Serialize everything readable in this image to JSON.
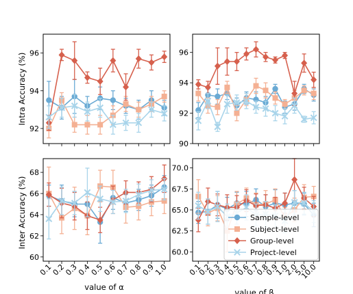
{
  "colors": {
    "sample": "#6aaad4",
    "subject": "#f4b093",
    "group": "#d6604d",
    "project": "#a8d4ea"
  },
  "labels": {
    "ylabel_top": "Intra Accuracy (%)",
    "ylabel_bottom": "Inter Accuracy (%)",
    "xlabel_left": "value of α",
    "xlabel_right": "value of β"
  },
  "chart_data": [
    {
      "type": "line",
      "panel": "intra-alpha",
      "x": [
        "0.1",
        "0.2",
        "0.3",
        "0.4",
        "0.5",
        "0.6",
        "0.7",
        "0.8",
        "0.9",
        "1.0"
      ],
      "ylim": [
        91.2,
        97.0
      ],
      "yticks": [
        92,
        94,
        96
      ],
      "ylabel": "Intra Accuracy (%)",
      "series": [
        {
          "name": "Sample-level",
          "marker": "circle",
          "values": [
            93.5,
            93.1,
            93.7,
            93.2,
            93.6,
            93.5,
            93.2,
            93.0,
            93.5,
            93.1
          ],
          "err": [
            1.0,
            0.6,
            0.9,
            0.5,
            0.6,
            0.5,
            0.4,
            0.5,
            0.5,
            0.4
          ]
        },
        {
          "name": "Subject-level",
          "marker": "square",
          "values": [
            92.0,
            93.5,
            92.2,
            92.2,
            92.2,
            92.7,
            93.3,
            93.0,
            93.3,
            93.7
          ],
          "err": [
            0.5,
            0.4,
            0.4,
            0.5,
            0.5,
            0.5,
            0.4,
            0.4,
            0.4,
            0.3
          ]
        },
        {
          "name": "Group-level",
          "marker": "diamond",
          "values": [
            92.3,
            95.9,
            95.6,
            94.7,
            94.5,
            95.6,
            94.2,
            95.7,
            95.5,
            95.8
          ],
          "err": [
            0.4,
            0.3,
            1.0,
            0.3,
            0.7,
            0.6,
            0.7,
            0.5,
            0.4,
            0.3
          ]
        },
        {
          "name": "Project-level",
          "marker": "x",
          "values": [
            92.6,
            93.1,
            93.2,
            92.9,
            93.1,
            92.2,
            92.3,
            92.3,
            93.0,
            92.8
          ],
          "err": [
            0.6,
            0.5,
            0.6,
            0.5,
            0.5,
            0.5,
            0.4,
            0.5,
            0.4,
            0.4
          ]
        }
      ]
    },
    {
      "type": "line",
      "panel": "intra-beta",
      "x": [
        "0.1",
        "0.2",
        "0.3",
        "0.4",
        "0.5",
        "0.6",
        "0.7",
        "0.8",
        "0.9",
        "1.0",
        "2.0",
        "5.0",
        "10.0"
      ],
      "ylim": [
        90.0,
        97.2
      ],
      "yticks": [
        90,
        92,
        94,
        96
      ],
      "series": [
        {
          "name": "Sample-level",
          "marker": "circle",
          "values": [
            92.2,
            93.2,
            93.1,
            93.3,
            92.5,
            93.0,
            92.9,
            92.7,
            93.6,
            92.4,
            92.6,
            93.6,
            93.2
          ],
          "err": [
            0.5,
            0.4,
            0.5,
            0.4,
            0.5,
            0.4,
            0.5,
            0.4,
            0.3,
            0.4,
            0.4,
            0.3,
            0.4
          ]
        },
        {
          "name": "Subject-level",
          "marker": "square",
          "values": [
            93.3,
            92.5,
            92.4,
            93.7,
            92.0,
            92.9,
            93.8,
            93.5,
            93.0,
            92.6,
            93.0,
            93.5,
            93.3
          ],
          "err": [
            0.5,
            0.5,
            0.5,
            0.4,
            0.5,
            0.4,
            0.5,
            0.5,
            0.4,
            0.3,
            0.5,
            0.3,
            0.4
          ]
        },
        {
          "name": "Group-level",
          "marker": "diamond",
          "values": [
            93.9,
            93.7,
            95.1,
            95.4,
            95.4,
            95.9,
            96.2,
            95.7,
            95.5,
            95.8,
            93.3,
            95.3,
            94.2
          ],
          "err": [
            0.3,
            0.4,
            1.2,
            0.9,
            0.6,
            0.4,
            0.5,
            0.3,
            0.2,
            0.2,
            0.8,
            0.6,
            0.5
          ]
        },
        {
          "name": "Project-level",
          "marker": "x",
          "values": [
            91.5,
            92.8,
            91.1,
            92.6,
            92.7,
            92.8,
            92.4,
            92.3,
            92.0,
            91.8,
            92.5,
            91.6,
            91.7
          ],
          "err": [
            0.6,
            0.5,
            0.3,
            0.6,
            0.5,
            0.5,
            0.4,
            0.5,
            0.5,
            0.5,
            0.5,
            0.2,
            0.4
          ]
        }
      ]
    },
    {
      "type": "line",
      "panel": "inter-alpha",
      "x": [
        "0.1",
        "0.2",
        "0.3",
        "0.4",
        "0.5",
        "0.6",
        "0.7",
        "0.8",
        "0.9",
        "1.0"
      ],
      "ylim": [
        59.6,
        69.3
      ],
      "yticks": [
        60,
        62,
        64,
        66,
        68
      ],
      "ylabel": "Inter Accuracy (%)",
      "xlabel": "value of α",
      "series": [
        {
          "name": "Sample-level",
          "marker": "circle",
          "values": [
            65.8,
            65.3,
            65.0,
            65.0,
            63.3,
            65.6,
            65.1,
            65.4,
            65.8,
            66.6
          ],
          "err": [
            1.0,
            1.5,
            1.2,
            1.0,
            2.0,
            1.1,
            0.8,
            1.0,
            1.0,
            1.1
          ]
        },
        {
          "name": "Subject-level",
          "marker": "square",
          "values": [
            66.0,
            63.7,
            64.6,
            63.9,
            66.7,
            66.6,
            64.7,
            64.8,
            65.2,
            65.3
          ],
          "err": [
            2.5,
            1.5,
            2.0,
            1.8,
            1.5,
            1.6,
            1.5,
            1.3,
            1.3,
            1.2
          ]
        },
        {
          "name": "Group-level",
          "marker": "diamond",
          "values": [
            65.9,
            65.1,
            64.8,
            63.9,
            63.5,
            65.4,
            66.1,
            66.1,
            66.4,
            67.4
          ],
          "err": [
            1.1,
            1.4,
            1.3,
            1.3,
            1.2,
            1.3,
            1.1,
            1.0,
            1.2,
            1.3
          ]
        },
        {
          "name": "Project-level",
          "marker": "x",
          "values": [
            63.6,
            65.3,
            65.1,
            66.1,
            65.5,
            65.2,
            65.3,
            65.9,
            66.3,
            66.4
          ],
          "err": [
            1.9,
            1.3,
            1.1,
            2.3,
            1.2,
            1.1,
            1.1,
            1.0,
            1.0,
            1.0
          ]
        }
      ]
    },
    {
      "type": "line",
      "panel": "inter-beta",
      "x": [
        "0.1",
        "0.2",
        "0.3",
        "0.4",
        "0.5",
        "0.6",
        "0.7",
        "0.8",
        "0.9",
        "1.0",
        "2.0",
        "5.0",
        "10.0"
      ],
      "ylim": [
        58.9,
        71.1
      ],
      "yticks": [
        60.0,
        62.5,
        65.0,
        67.5,
        70.0
      ],
      "xlabel": "value of β",
      "series": [
        {
          "name": "Sample-level",
          "marker": "circle",
          "values": [
            64.7,
            64.8,
            65.6,
            65.1,
            65.8,
            65.7,
            66.2,
            65.4,
            65.8,
            65.6,
            65.8,
            65.7,
            64.4
          ],
          "err": [
            1.3,
            1.5,
            1.6,
            1.4,
            1.3,
            1.5,
            1.3,
            1.4,
            1.6,
            1.4,
            1.5,
            1.3,
            1.4
          ]
        },
        {
          "name": "Subject-level",
          "marker": "square",
          "values": [
            66.6,
            64.6,
            65.2,
            62.5,
            65.7,
            66.4,
            65.6,
            65.7,
            66.2,
            64.1,
            65.0,
            66.5,
            66.6
          ],
          "err": [
            2.0,
            1.5,
            1.5,
            2.5,
            1.5,
            1.2,
            1.4,
            1.6,
            1.3,
            1.2,
            1.4,
            1.5,
            1.2
          ]
        },
        {
          "name": "Group-level",
          "marker": "diamond",
          "values": [
            63.8,
            66.0,
            65.6,
            65.3,
            65.3,
            66.1,
            65.5,
            65.6,
            65.2,
            65.8,
            68.6,
            66.4,
            65.4
          ],
          "err": [
            1.4,
            1.6,
            1.3,
            1.5,
            1.4,
            1.3,
            1.4,
            1.2,
            1.3,
            1.2,
            2.5,
            1.3,
            1.2
          ]
        },
        {
          "name": "Project-level",
          "marker": "x",
          "values": [
            65.5,
            64.8,
            65.4,
            64.2,
            64.6,
            65.3,
            64.4,
            64.5,
            64.3,
            63.7,
            65.9,
            65.8,
            64.8
          ],
          "err": [
            1.6,
            1.5,
            1.8,
            1.5,
            1.3,
            1.5,
            1.3,
            1.5,
            1.3,
            1.4,
            1.4,
            1.3,
            1.3
          ]
        }
      ]
    }
  ],
  "legend": {
    "position": "lower-right of bottom-right panel",
    "entries": [
      "Sample-level",
      "Subject-level",
      "Group-level",
      "Project-level"
    ]
  }
}
